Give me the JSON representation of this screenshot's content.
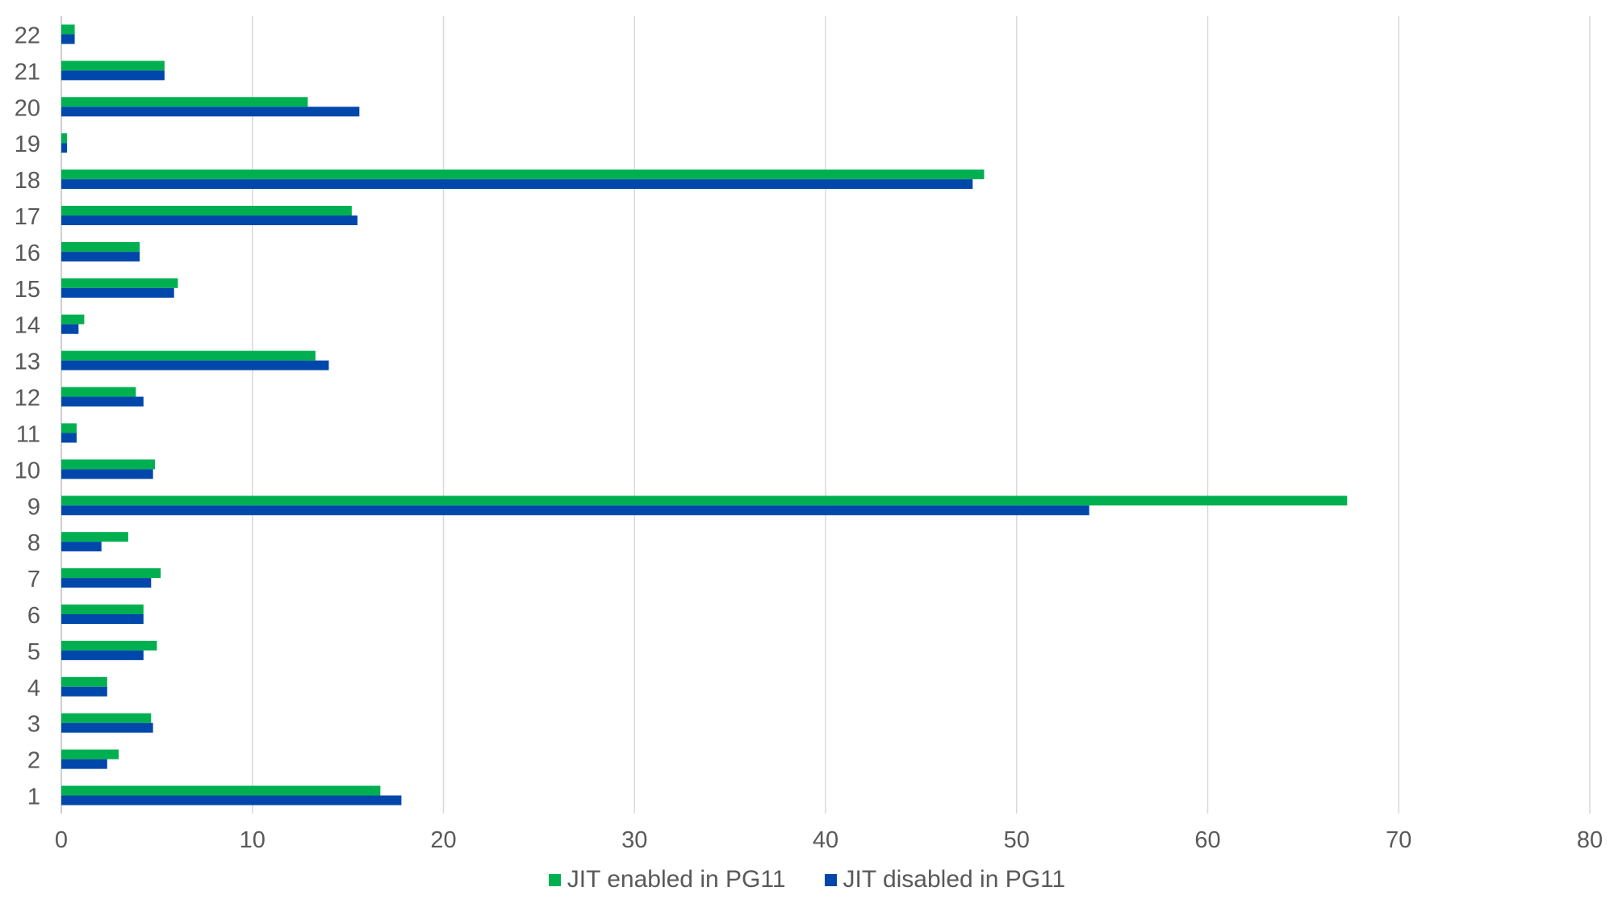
{
  "chart_data": {
    "type": "bar",
    "orientation": "horizontal",
    "categories": [
      "1",
      "2",
      "3",
      "4",
      "5",
      "6",
      "7",
      "8",
      "9",
      "10",
      "11",
      "12",
      "13",
      "14",
      "15",
      "16",
      "17",
      "18",
      "19",
      "20",
      "21",
      "22"
    ],
    "series": [
      {
        "name": "JIT enabled in PG11",
        "color": "#00b050",
        "values": [
          16.7,
          3.0,
          4.7,
          2.4,
          5.0,
          4.3,
          5.2,
          3.5,
          67.3,
          4.9,
          0.8,
          3.9,
          13.3,
          1.2,
          6.1,
          4.1,
          15.2,
          48.3,
          0.3,
          12.9,
          5.4,
          0.7
        ]
      },
      {
        "name": "JIT disabled in PG11",
        "color": "#0047ab",
        "values": [
          17.8,
          2.4,
          4.8,
          2.4,
          4.3,
          4.3,
          4.7,
          2.1,
          53.8,
          4.8,
          0.8,
          4.3,
          14.0,
          0.9,
          5.9,
          4.1,
          15.5,
          47.7,
          0.3,
          15.6,
          5.4,
          0.7
        ]
      }
    ],
    "xlim": [
      0,
      80
    ],
    "xticks": [
      "0",
      "10",
      "20",
      "30",
      "40",
      "50",
      "60",
      "70",
      "80"
    ],
    "grid": "vertical",
    "legend": "bottom-center",
    "title": "",
    "xlabel": "",
    "ylabel": ""
  }
}
